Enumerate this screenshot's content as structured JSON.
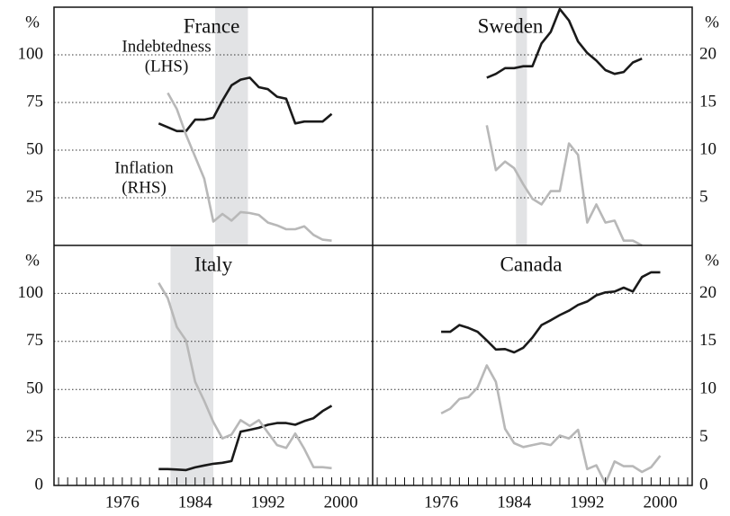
{
  "chart_data": [
    {
      "type": "line",
      "title": "France",
      "xlim": [
        1968.5,
        2003.5
      ],
      "ylim": [
        0,
        125
      ],
      "y2lim": [
        0,
        25
      ],
      "yticks": [
        25,
        50,
        75,
        100
      ],
      "y_label": "%",
      "shade": [
        1986.2,
        1989.8
      ],
      "annotations": [
        "Indebtedness",
        "(LHS)",
        "Inflation",
        "(RHS)"
      ],
      "x": [
        1980,
        1981,
        1982,
        1983,
        1984,
        1985,
        1986,
        1987,
        1988,
        1989,
        1990,
        1991,
        1992,
        1993,
        1994,
        1995,
        1996,
        1997,
        1998,
        1999
      ],
      "series": [
        {
          "color": "#1a1a1a",
          "axis": "y",
          "values": [
            64,
            62,
            60,
            60,
            66,
            66,
            67,
            76,
            84,
            87,
            88,
            83,
            82,
            78,
            77,
            64,
            65,
            65,
            65,
            69
          ]
        },
        {
          "color": "#b8b8b8",
          "axis": "y2",
          "values": [
            null,
            16,
            14.3,
            11.6,
            9.3,
            7.0,
            2.5,
            3.3,
            2.6,
            3.5,
            3.4,
            3.2,
            2.4,
            2.1,
            1.7,
            1.7,
            2.0,
            1.1,
            0.6,
            0.5
          ]
        }
      ]
    },
    {
      "type": "line",
      "title": "Sweden",
      "xlim": [
        1968.5,
        2003.5
      ],
      "ylim": [
        0,
        125
      ],
      "y2lim": [
        0,
        25
      ],
      "y2ticks": [
        5,
        10,
        15,
        20
      ],
      "y2_label": "%",
      "shade": [
        1984.2,
        1985.4
      ],
      "x": [
        1981,
        1982,
        1983,
        1984,
        1985,
        1986,
        1987,
        1988,
        1989,
        1990,
        1991,
        1992,
        1993,
        1994,
        1995,
        1996,
        1997,
        1998
      ],
      "series": [
        {
          "color": "#1a1a1a",
          "axis": "y",
          "values": [
            88,
            90,
            93,
            93,
            94,
            94,
            106,
            112,
            124,
            118,
            107,
            101,
            97,
            92,
            90,
            91,
            96,
            98
          ]
        },
        {
          "color": "#b8b8b8",
          "axis": "y2",
          "values": [
            12.6,
            7.9,
            8.8,
            8.1,
            6.4,
            4.9,
            4.3,
            5.7,
            5.7,
            10.7,
            9.5,
            2.4,
            4.3,
            2.4,
            2.6,
            0.5,
            0.5,
            0
          ]
        }
      ]
    },
    {
      "type": "line",
      "title": "Italy",
      "xlim": [
        1968.5,
        2003.5
      ],
      "ylim": [
        0,
        125
      ],
      "y2lim": [
        0,
        25
      ],
      "yticks": [
        0,
        25,
        50,
        75,
        100
      ],
      "y_label": "%",
      "shade": [
        1981.3,
        1986
      ],
      "xticks": [
        1976,
        1984,
        1992,
        2000
      ],
      "xminor": [
        1969,
        1970,
        1971,
        1972,
        1973,
        1974,
        1975,
        1976,
        1977,
        1978,
        1979,
        1980,
        1981,
        1982,
        1983,
        1984,
        1985,
        1986,
        1987,
        1988,
        1989,
        1990,
        1991,
        1992,
        1993,
        1994,
        1995,
        1996,
        1997,
        1998,
        1999,
        2000,
        2001,
        2002,
        2003
      ],
      "x": [
        1980,
        1981,
        1982,
        1983,
        1984,
        1985,
        1986,
        1987,
        1988,
        1989,
        1990,
        1991,
        1992,
        1993,
        1994,
        1995,
        1996,
        1997,
        1998,
        1999
      ],
      "series": [
        {
          "color": "#1a1a1a",
          "axis": "y",
          "values": [
            8.5,
            8.5,
            8.3,
            8,
            9.4,
            10.4,
            11.3,
            11.8,
            12.7,
            28,
            29,
            30,
            31.6,
            32.5,
            32.5,
            31.6,
            33.5,
            35,
            38.7,
            41.5
          ]
        },
        {
          "color": "#b8b8b8",
          "axis": "y2",
          "values": [
            21.1,
            19.5,
            16.5,
            15.1,
            10.8,
            8.8,
            6.6,
            4.9,
            5.3,
            6.8,
            6.2,
            6.8,
            5.5,
            4.2,
            3.9,
            5.4,
            3.8,
            1.9,
            1.9,
            1.8
          ]
        }
      ]
    },
    {
      "type": "line",
      "title": "Canada",
      "xlim": [
        1968.5,
        2003.5
      ],
      "ylim": [
        0,
        125
      ],
      "y2lim": [
        0,
        25
      ],
      "y2ticks": [
        0,
        5,
        10,
        15,
        20
      ],
      "y2_label": "%",
      "xticks": [
        1976,
        1984,
        1992,
        2000
      ],
      "xminor": [
        1969,
        1970,
        1971,
        1972,
        1973,
        1974,
        1975,
        1976,
        1977,
        1978,
        1979,
        1980,
        1981,
        1982,
        1983,
        1984,
        1985,
        1986,
        1987,
        1988,
        1989,
        1990,
        1991,
        1992,
        1993,
        1994,
        1995,
        1996,
        1997,
        1998,
        1999,
        2000,
        2001,
        2002,
        2003
      ],
      "x": [
        1976,
        1977,
        1978,
        1979,
        1980,
        1981,
        1982,
        1983,
        1984,
        1985,
        1986,
        1987,
        1988,
        1989,
        1990,
        1991,
        1992,
        1993,
        1994,
        1995,
        1996,
        1997,
        1998,
        1999,
        2000
      ],
      "series": [
        {
          "color": "#1a1a1a",
          "axis": "y",
          "values": [
            80,
            80,
            83.5,
            82,
            80,
            75.5,
            70.8,
            71,
            69.3,
            71.7,
            77,
            83.5,
            86,
            88.7,
            91,
            94,
            95.8,
            99,
            100.5,
            101,
            103,
            101,
            108.5,
            111,
            111
          ]
        },
        {
          "color": "#b8b8b8",
          "axis": "y2",
          "values": [
            7.5,
            8.0,
            9.0,
            9.2,
            10.2,
            12.5,
            10.8,
            5.9,
            4.4,
            4.0,
            4.2,
            4.4,
            4.2,
            5.2,
            4.9,
            5.8,
            1.7,
            2.1,
            0.2,
            2.5,
            2.0,
            2.0,
            1.4,
            1.9,
            3.1
          ]
        }
      ]
    }
  ]
}
